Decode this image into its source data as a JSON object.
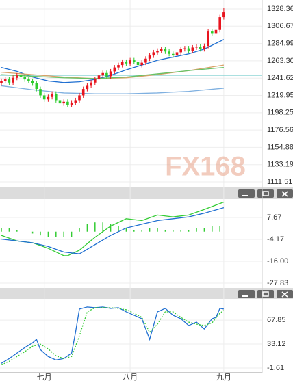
{
  "chart_data": [
    {
      "type": "candlestick",
      "watermark": "FX168",
      "up_color": "#e8141e",
      "down_color": "#2ecc2e",
      "grid": true,
      "categories": [
        null,
        null,
        null,
        null,
        null,
        null,
        null,
        null,
        null,
        null,
        null,
        "七月",
        null,
        null,
        null,
        null,
        null,
        null,
        null,
        null,
        null,
        null,
        null,
        null,
        null,
        null,
        null,
        null,
        null,
        null,
        null,
        null,
        null,
        "八月",
        null,
        null,
        null,
        null,
        null,
        null,
        null,
        null,
        null,
        null,
        null,
        null,
        null,
        null,
        null,
        null,
        null,
        null,
        null,
        null,
        null,
        null,
        null,
        "九月"
      ],
      "open": [
        1235,
        1238,
        1240,
        1236,
        1242,
        1245,
        1243,
        1240,
        1238,
        1235,
        1228,
        1220,
        1215,
        1218,
        1222,
        1214,
        1210,
        1212,
        1208,
        1211,
        1214,
        1220,
        1228,
        1232,
        1236,
        1240,
        1245,
        1248,
        1244,
        1250,
        1255,
        1258,
        1262,
        1260,
        1264,
        1262,
        1258,
        1261,
        1266,
        1270,
        1274,
        1276,
        1278,
        1275,
        1272,
        1270,
        1274,
        1278,
        1279,
        1276,
        1280,
        1281,
        1278,
        1282,
        1300,
        1298,
        1302,
        1318
      ],
      "high": [
        1241,
        1243,
        1243,
        1245,
        1248,
        1248,
        1246,
        1243,
        1241,
        1238,
        1231,
        1223,
        1221,
        1225,
        1225,
        1217,
        1215,
        1215,
        1214,
        1217,
        1223,
        1231,
        1235,
        1239,
        1243,
        1248,
        1251,
        1251,
        1253,
        1258,
        1261,
        1265,
        1265,
        1267,
        1267,
        1265,
        1264,
        1269,
        1273,
        1277,
        1279,
        1281,
        1281,
        1278,
        1275,
        1277,
        1281,
        1282,
        1282,
        1283,
        1284,
        1284,
        1285,
        1303,
        1303,
        1305,
        1321,
        1330
      ],
      "low": [
        1232,
        1235,
        1233,
        1233,
        1239,
        1240,
        1237,
        1235,
        1232,
        1225,
        1217,
        1212,
        1212,
        1215,
        1211,
        1207,
        1207,
        1205,
        1205,
        1208,
        1211,
        1217,
        1225,
        1229,
        1233,
        1237,
        1242,
        1241,
        1241,
        1247,
        1252,
        1255,
        1257,
        1257,
        1259,
        1255,
        1255,
        1258,
        1263,
        1267,
        1271,
        1273,
        1272,
        1269,
        1267,
        1267,
        1271,
        1275,
        1273,
        1273,
        1277,
        1275,
        1275,
        1279,
        1295,
        1295,
        1299,
        1315
      ],
      "close": [
        1238,
        1240,
        1236,
        1242,
        1245,
        1243,
        1240,
        1238,
        1235,
        1228,
        1220,
        1215,
        1218,
        1222,
        1214,
        1210,
        1212,
        1208,
        1211,
        1214,
        1220,
        1228,
        1232,
        1236,
        1240,
        1245,
        1248,
        1244,
        1250,
        1255,
        1258,
        1262,
        1260,
        1264,
        1262,
        1258,
        1261,
        1266,
        1270,
        1274,
        1276,
        1278,
        1275,
        1272,
        1270,
        1274,
        1278,
        1279,
        1276,
        1280,
        1281,
        1278,
        1282,
        1300,
        1298,
        1302,
        1318,
        1324
      ],
      "lines": [
        {
          "color": "#1f6fd1",
          "x": [
            0,
            4,
            8,
            12,
            16,
            20,
            24,
            28,
            32,
            36,
            40,
            44,
            48,
            52,
            57
          ],
          "values": [
            1255,
            1250,
            1243,
            1238,
            1236,
            1237,
            1240,
            1245,
            1252,
            1258,
            1264,
            1268,
            1272,
            1278,
            1290
          ]
        },
        {
          "color": "#7fb0e0",
          "x": [
            0,
            8,
            16,
            24,
            32,
            40,
            48,
            57
          ],
          "values": [
            1232,
            1227,
            1223,
            1222,
            1222,
            1223,
            1225,
            1229
          ]
        },
        {
          "color": "#d9a066",
          "x": [
            0,
            8,
            16,
            24,
            32,
            40,
            48,
            57
          ],
          "values": [
            1249,
            1246,
            1243,
            1241,
            1242,
            1246,
            1251,
            1258
          ]
        },
        {
          "color": "#66c266",
          "x": [
            0,
            8,
            16,
            24,
            32,
            40,
            48,
            57
          ],
          "values": [
            1246,
            1244,
            1242,
            1241,
            1243,
            1247,
            1251,
            1255
          ]
        }
      ],
      "price_line": {
        "color": "#8fd6d6",
        "value": 1245
      },
      "ylim": [
        1106.39,
        1339.5
      ],
      "yticks": [
        1111.51,
        1133.19,
        1154.88,
        1176.56,
        1198.25,
        1219.95,
        1241.62,
        {
          "value": 1263.3,
          "label": "1263.30"
        },
        1284.99,
        1306.67,
        1328.36
      ]
    },
    {
      "type": "macd",
      "grid": true,
      "series": [
        {
          "color": "#33cc33",
          "x": [
            0,
            4,
            8,
            12,
            16,
            17,
            20,
            24,
            28,
            32,
            36,
            40,
            44,
            48,
            52,
            57
          ],
          "values": [
            -2,
            -5,
            -6,
            -9,
            -13,
            -13,
            -10,
            -3,
            3,
            7,
            6,
            9,
            8,
            9,
            12,
            16
          ]
        },
        {
          "color": "#1f6fd1",
          "x": [
            0,
            4,
            8,
            12,
            16,
            20,
            24,
            28,
            32,
            36,
            40,
            44,
            48,
            52,
            57
          ],
          "values": [
            -4,
            -5,
            -6,
            -8,
            -11,
            -12,
            -7,
            -2,
            2,
            4,
            6,
            7,
            8,
            10,
            13
          ]
        }
      ],
      "histogram": {
        "color": "#33cc33",
        "x": [
          0,
          2,
          4,
          6,
          8,
          10,
          12,
          14,
          16,
          18,
          20,
          22,
          24,
          26,
          28,
          30,
          32,
          34,
          36,
          38,
          40,
          42,
          44,
          46,
          48,
          50,
          52,
          54,
          56
        ],
        "values": [
          2,
          2,
          1,
          0,
          -1,
          -2,
          -3,
          -3,
          -3,
          -3,
          2,
          4,
          5,
          5,
          4,
          3,
          2,
          1,
          1,
          2,
          2,
          1,
          1,
          1,
          1,
          2,
          2,
          3,
          3
        ]
      },
      "ylim": [
        -30.05,
        17.28
      ],
      "yticks": [
        -27.83,
        {
          "value": -16,
          "label": "-16.00"
        },
        -4.17,
        7.67
      ]
    },
    {
      "type": "stochastic",
      "grid": true,
      "series": [
        {
          "color": "#1f6fd1",
          "style": "solid",
          "x": [
            0,
            2,
            4,
            6,
            8,
            9,
            10,
            12,
            14,
            16,
            18,
            19,
            20,
            22,
            24,
            26,
            28,
            30,
            32,
            34,
            36,
            37,
            38,
            40,
            42,
            44,
            46,
            48,
            50,
            52,
            54,
            55,
            56,
            57
          ],
          "values": [
            5,
            12,
            20,
            28,
            35,
            40,
            25,
            15,
            10,
            12,
            20,
            50,
            84,
            87,
            86,
            87,
            85,
            86,
            80,
            75,
            70,
            55,
            40,
            80,
            85,
            75,
            70,
            60,
            65,
            55,
            70,
            72,
            85,
            84
          ]
        },
        {
          "color": "#33cc33",
          "style": "dashed",
          "x": [
            0,
            2,
            4,
            6,
            8,
            10,
            12,
            14,
            16,
            18,
            20,
            22,
            24,
            26,
            28,
            30,
            32,
            34,
            36,
            38,
            40,
            42,
            44,
            46,
            48,
            50,
            52,
            54,
            56,
            57
          ],
          "values": [
            3,
            8,
            15,
            22,
            30,
            33,
            26,
            16,
            12,
            15,
            45,
            80,
            86,
            86,
            86,
            85,
            83,
            78,
            72,
            50,
            62,
            80,
            80,
            72,
            65,
            62,
            60,
            64,
            78,
            82
          ]
        }
      ],
      "ylim": [
        -8.61,
        97.85
      ],
      "yticks": [
        -1.61,
        33.12,
        67.85
      ]
    }
  ]
}
